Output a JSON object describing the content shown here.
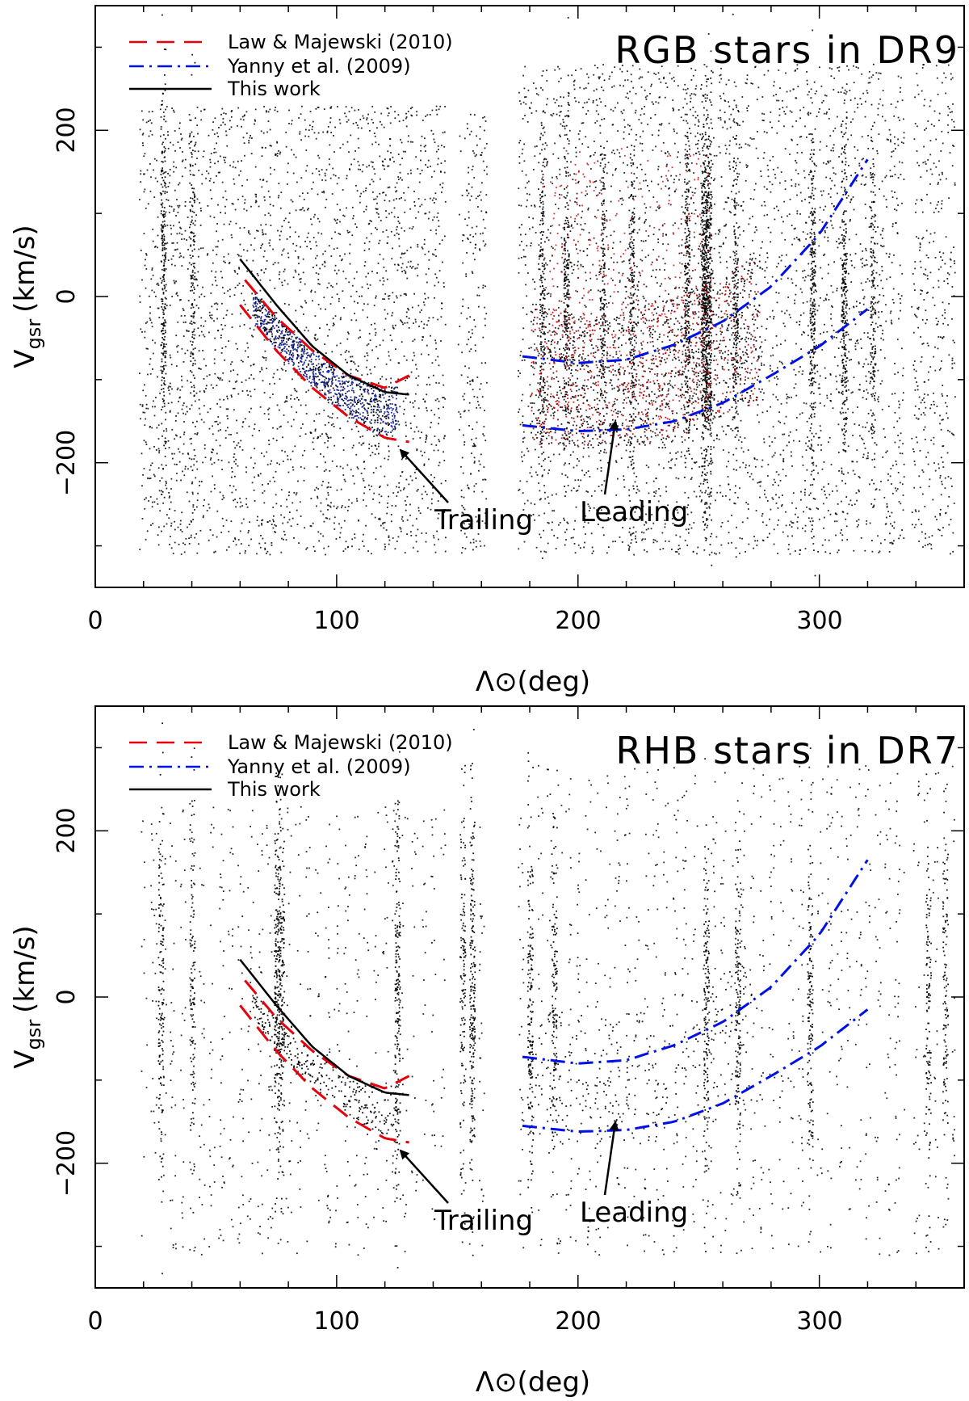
{
  "chart_data": [
    {
      "type": "scatter",
      "title": "RGB stars in DR9",
      "xlabel": "Λ⊙(deg)",
      "ylabel": "Vgsr (km/s)",
      "ylabel_main": "V",
      "ylabel_sub": "gsr",
      "ylabel_units": "(km/s)",
      "xlim": [
        0,
        360
      ],
      "ylim": [
        -350,
        350
      ],
      "xticks": [
        0,
        100,
        200,
        300
      ],
      "xtick_labels": [
        "0",
        "100",
        "200",
        "300"
      ],
      "yticks": [
        -200,
        0,
        200
      ],
      "ytick_labels": [
        "−200",
        "0",
        "200"
      ],
      "legend": [
        {
          "label": "Law & Majewski (2010)",
          "color": "#e8000b",
          "style": "dashed"
        },
        {
          "label": "Yanny et al. (2009)",
          "color": "#0010e8",
          "style": "dashdot"
        },
        {
          "label": "This work",
          "color": "#000000",
          "style": "solid"
        }
      ],
      "curves": [
        {
          "name": "Law & Majewski (2010) upper",
          "color": "#e8000b",
          "style": "dashed",
          "x": [
            62,
            75,
            90,
            105,
            120,
            130
          ],
          "y": [
            20,
            -25,
            -65,
            -95,
            -110,
            -95
          ]
        },
        {
          "name": "Law & Majewski (2010) lower",
          "color": "#e8000b",
          "style": "dashed",
          "x": [
            60,
            75,
            90,
            105,
            120,
            130
          ],
          "y": [
            -10,
            -65,
            -110,
            -145,
            -170,
            -175
          ]
        },
        {
          "name": "Yanny et al. (2009) upper",
          "color": "#0010e8",
          "style": "dashdot",
          "x": [
            177,
            200,
            220,
            240,
            260,
            280,
            300,
            320
          ],
          "y": [
            -72,
            -80,
            -76,
            -58,
            -30,
            12,
            75,
            165
          ]
        },
        {
          "name": "Yanny et al. (2009) lower",
          "color": "#0010e8",
          "style": "dashdot",
          "x": [
            177,
            200,
            220,
            240,
            260,
            280,
            300,
            320
          ],
          "y": [
            -155,
            -162,
            -160,
            -150,
            -128,
            -95,
            -60,
            -15
          ]
        },
        {
          "name": "This work",
          "color": "#000000",
          "style": "solid",
          "x": [
            60,
            75,
            90,
            105,
            120,
            130
          ],
          "y": [
            45,
            -10,
            -60,
            -95,
            -115,
            -118
          ]
        }
      ],
      "annotations": [
        {
          "text": "Trailing",
          "x": 165,
          "y": -270,
          "arrow_to": [
            125,
            -180
          ]
        },
        {
          "text": "Leading",
          "x": 225,
          "y": -260,
          "arrow_to": [
            215,
            -150
          ]
        }
      ],
      "scatter_note": "thousands of star velocities; black field stars with red and blue highlighted Sgr candidates",
      "dot_colors": {
        "field": "#000000",
        "red_highlight": "#c00000",
        "blue_highlight": "#1020a0"
      }
    },
    {
      "type": "scatter",
      "title": "RHB stars in DR7",
      "xlabel": "Λ⊙(deg)",
      "ylabel": "Vgsr (km/s)",
      "ylabel_main": "V",
      "ylabel_sub": "gsr",
      "ylabel_units": "(km/s)",
      "xlim": [
        0,
        360
      ],
      "ylim": [
        -350,
        350
      ],
      "xticks": [
        0,
        100,
        200,
        300
      ],
      "xtick_labels": [
        "0",
        "100",
        "200",
        "300"
      ],
      "yticks": [
        -200,
        0,
        200
      ],
      "ytick_labels": [
        "−200",
        "0",
        "200"
      ],
      "legend": [
        {
          "label": "Law & Majewski (2010)",
          "color": "#e8000b",
          "style": "dashed"
        },
        {
          "label": "Yanny et al. (2009)",
          "color": "#0010e8",
          "style": "dashdot"
        },
        {
          "label": "This work",
          "color": "#000000",
          "style": "solid"
        }
      ],
      "curves": [
        {
          "name": "Law & Majewski (2010) upper",
          "color": "#e8000b",
          "style": "dashed",
          "x": [
            62,
            75,
            90,
            105,
            120,
            130
          ],
          "y": [
            20,
            -25,
            -65,
            -95,
            -110,
            -95
          ]
        },
        {
          "name": "Law & Majewski (2010) lower",
          "color": "#e8000b",
          "style": "dashed",
          "x": [
            60,
            75,
            90,
            105,
            120,
            130
          ],
          "y": [
            -10,
            -65,
            -110,
            -145,
            -170,
            -175
          ]
        },
        {
          "name": "Yanny et al. (2009) upper",
          "color": "#0010e8",
          "style": "dashdot",
          "x": [
            177,
            200,
            220,
            240,
            260,
            280,
            300,
            320
          ],
          "y": [
            -72,
            -80,
            -76,
            -58,
            -30,
            12,
            75,
            165
          ]
        },
        {
          "name": "Yanny et al. (2009) lower",
          "color": "#0010e8",
          "style": "dashdot",
          "x": [
            177,
            200,
            220,
            240,
            260,
            280,
            300,
            320
          ],
          "y": [
            -155,
            -162,
            -160,
            -150,
            -128,
            -95,
            -60,
            -15
          ]
        },
        {
          "name": "This work",
          "color": "#000000",
          "style": "solid",
          "x": [
            60,
            75,
            90,
            105,
            120,
            130
          ],
          "y": [
            45,
            -10,
            -60,
            -95,
            -115,
            -118
          ]
        }
      ],
      "annotations": [
        {
          "text": "Trailing",
          "x": 165,
          "y": -270,
          "arrow_to": [
            125,
            -180
          ]
        },
        {
          "text": "Leading",
          "x": 225,
          "y": -260,
          "arrow_to": [
            215,
            -150
          ]
        }
      ],
      "scatter_note": "sparser black field star velocities",
      "dot_colors": {
        "field": "#000000",
        "red_highlight": "#000000",
        "blue_highlight": "#000000"
      }
    }
  ]
}
